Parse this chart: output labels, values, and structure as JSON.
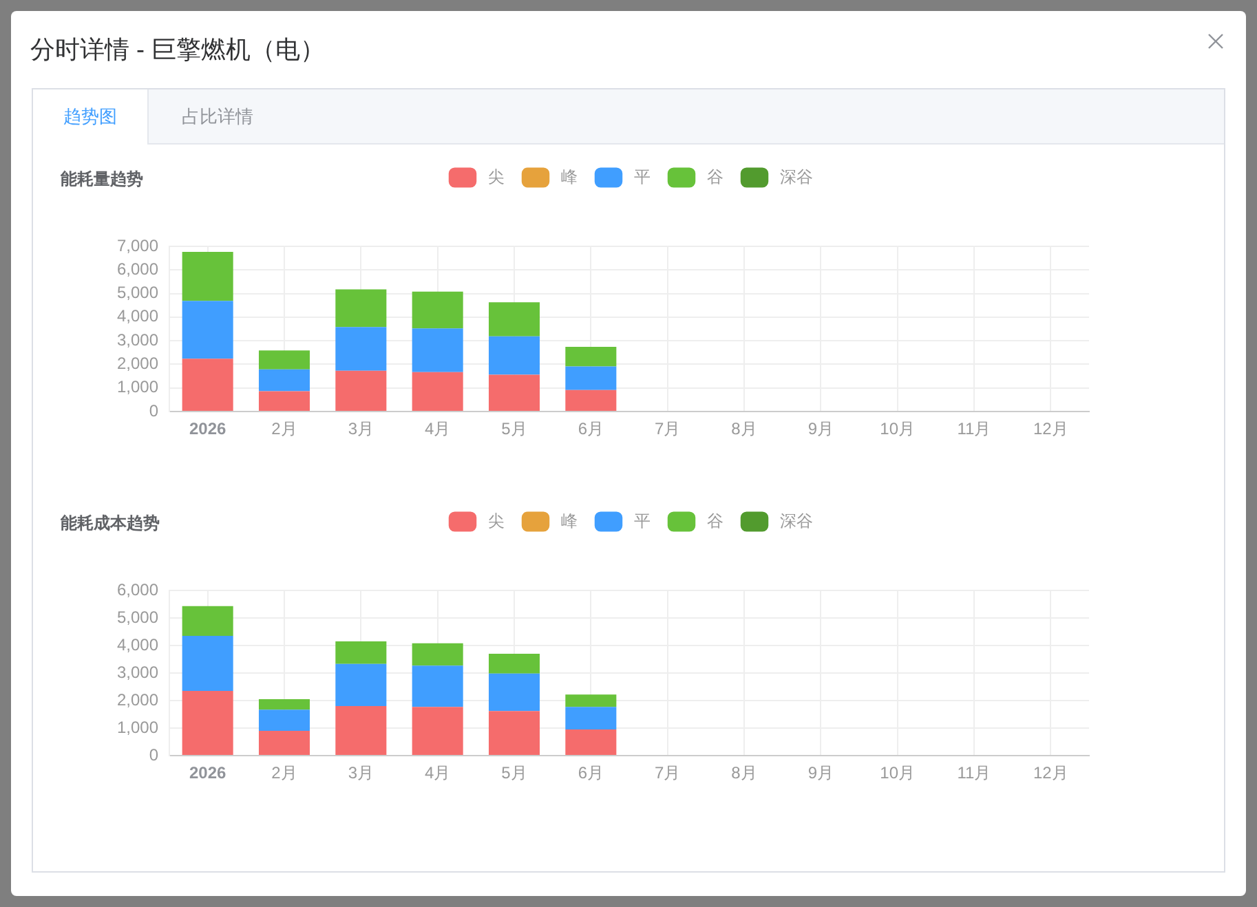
{
  "chart_data": [
    {
      "type": "bar",
      "title": "能耗量趋势",
      "annotations": [
        "分时详情 - 巨擎燃机（电）",
        "趋势图",
        "占比详情"
      ],
      "categories": [
        "2026",
        "2月",
        "3月",
        "4月",
        "5月",
        "6月",
        "7月",
        "8月",
        "9月",
        "10月",
        "11月",
        "12月"
      ],
      "stacked": true,
      "series": [
        {
          "name": "尖",
          "color": "#f56c6c",
          "values": [
            2240,
            860,
            1730,
            1670,
            1560,
            910,
            null,
            null,
            null,
            null,
            null,
            null
          ]
        },
        {
          "name": "峰",
          "color": "#e6a23c",
          "values": [
            null,
            null,
            null,
            null,
            null,
            null,
            null,
            null,
            null,
            null,
            null,
            null
          ]
        },
        {
          "name": "平",
          "color": "#409eff",
          "values": [
            2450,
            930,
            1850,
            1850,
            1630,
            1000,
            null,
            null,
            null,
            null,
            null,
            null
          ]
        },
        {
          "name": "谷",
          "color": "#67c23a",
          "values": [
            2080,
            800,
            1600,
            1560,
            1440,
            830,
            null,
            null,
            null,
            null,
            null,
            null
          ]
        },
        {
          "name": "深谷",
          "color": "#529b2e",
          "values": [
            null,
            null,
            null,
            null,
            null,
            null,
            null,
            null,
            null,
            null,
            null,
            null
          ]
        }
      ],
      "ylim": [
        0,
        7000
      ],
      "yticks": [
        0,
        {
          "value": 1000,
          "label": "1,000"
        },
        {
          "value": 2000,
          "label": "2,000"
        },
        {
          "value": 3000,
          "label": "3,000"
        },
        {
          "value": 4000,
          "label": "4,000"
        },
        {
          "value": 5000,
          "label": "5,000"
        },
        {
          "value": 6000,
          "label": "6,000"
        },
        {
          "value": 7000,
          "label": "7,000"
        }
      ],
      "grid": true,
      "legend": "top"
    },
    {
      "type": "bar",
      "title": "能耗成本趋势",
      "categories": [
        "2026",
        "2月",
        "3月",
        "4月",
        "5月",
        "6月",
        "7月",
        "8月",
        "9月",
        "10月",
        "11月",
        "12月"
      ],
      "stacked": true,
      "series": [
        {
          "name": "尖",
          "color": "#f56c6c",
          "values": [
            2350,
            900,
            1800,
            1770,
            1620,
            950,
            null,
            null,
            null,
            null,
            null,
            null
          ]
        },
        {
          "name": "峰",
          "color": "#e6a23c",
          "values": [
            null,
            null,
            null,
            null,
            null,
            null,
            null,
            null,
            null,
            null,
            null,
            null
          ]
        },
        {
          "name": "平",
          "color": "#409eff",
          "values": [
            2000,
            770,
            1530,
            1500,
            1360,
            820,
            null,
            null,
            null,
            null,
            null,
            null
          ]
        },
        {
          "name": "谷",
          "color": "#67c23a",
          "values": [
            1080,
            380,
            820,
            810,
            720,
            450,
            null,
            null,
            null,
            null,
            null,
            null
          ]
        },
        {
          "name": "深谷",
          "color": "#529b2e",
          "values": [
            null,
            null,
            null,
            null,
            null,
            null,
            null,
            null,
            null,
            null,
            null,
            null
          ]
        }
      ],
      "ylim": [
        0,
        6000
      ],
      "yticks": [
        0,
        {
          "value": 1000,
          "label": "1,000"
        },
        {
          "value": 2000,
          "label": "2,000"
        },
        {
          "value": 3000,
          "label": "3,000"
        },
        {
          "value": 4000,
          "label": "4,000"
        },
        {
          "value": 5000,
          "label": "5,000"
        },
        {
          "value": 6000,
          "label": "6,000"
        }
      ],
      "grid": true,
      "legend": "top"
    }
  ]
}
